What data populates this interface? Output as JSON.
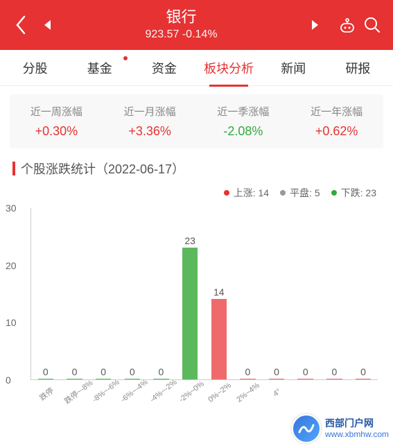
{
  "header": {
    "title": "银行",
    "price": "923.57",
    "change": "-0.14%"
  },
  "tabs": [
    {
      "label": "分股",
      "active": false,
      "dot": false
    },
    {
      "label": "基金",
      "active": false,
      "dot": true
    },
    {
      "label": "资金",
      "active": false,
      "dot": false
    },
    {
      "label": "板块分析",
      "active": true,
      "dot": false
    },
    {
      "label": "新闻",
      "active": false,
      "dot": false
    },
    {
      "label": "研报",
      "active": false,
      "dot": false
    }
  ],
  "stats": [
    {
      "label": "近一周涨幅",
      "value": "+0.30%",
      "dir": "up"
    },
    {
      "label": "近一月涨幅",
      "value": "+3.36%",
      "dir": "up"
    },
    {
      "label": "近一季涨幅",
      "value": "-2.08%",
      "dir": "down"
    },
    {
      "label": "近一年涨幅",
      "value": "+0.62%",
      "dir": "up"
    }
  ],
  "section_title": "个股涨跌统计（2022-06-17）",
  "legend": [
    {
      "color": "#e63232",
      "label": "上涨: 14"
    },
    {
      "color": "#999999",
      "label": "平盘: 5"
    },
    {
      "color": "#2faa3c",
      "label": "下跌: 23"
    }
  ],
  "chart": {
    "ymax": 30,
    "yticks": [
      0,
      10,
      20,
      30
    ],
    "colors": {
      "up": "#ef6b6b",
      "down": "#5cb85c",
      "neutral": "#999"
    },
    "bars": [
      {
        "label": "跌停",
        "value": 0,
        "color": "#5cb85c"
      },
      {
        "label": "跌停~-8%",
        "value": 0,
        "color": "#5cb85c"
      },
      {
        "label": "-8%~-6%",
        "value": 0,
        "color": "#5cb85c"
      },
      {
        "label": "-6%~-4%",
        "value": 0,
        "color": "#5cb85c"
      },
      {
        "label": "-4%~-2%",
        "value": 0,
        "color": "#5cb85c"
      },
      {
        "label": "-2%~0%",
        "value": 23,
        "color": "#5cb85c"
      },
      {
        "label": "0%~2%",
        "value": 14,
        "color": "#ef6b6b"
      },
      {
        "label": "2%~4%",
        "value": 0,
        "color": "#ef6b6b"
      },
      {
        "label": "4°",
        "value": 0,
        "color": "#ef6b6b"
      },
      {
        "label": "",
        "value": 0,
        "color": "#ef6b6b"
      },
      {
        "label": "",
        "value": 0,
        "color": "#ef6b6b"
      },
      {
        "label": "",
        "value": 0,
        "color": "#ef6b6b"
      }
    ]
  },
  "watermark": {
    "line1": "西部门户网",
    "line2": "www.xbmhw.com"
  }
}
